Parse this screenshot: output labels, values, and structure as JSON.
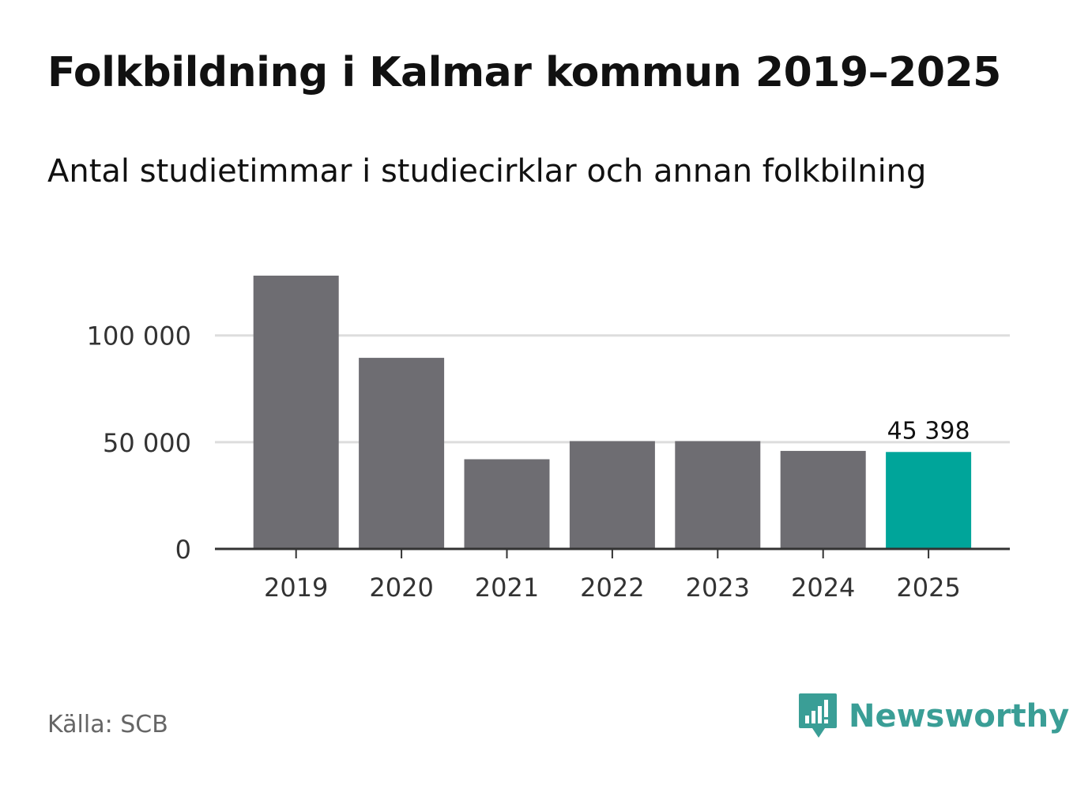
{
  "title": "Folkbildning i Kalmar kommun 2019–2025",
  "subtitle": "Antal studietimmar i studiecirklar och annan folkbilning",
  "source": "Källa: SCB",
  "brand": {
    "name": "Newsworthy",
    "icon": "newsworthy-logo-icon",
    "color": "#3a9e96"
  },
  "colors": {
    "bar": "#6e6d72",
    "highlight": "#00a59a",
    "grid": "#dddddd",
    "axis": "#333333"
  },
  "chart_data": {
    "type": "bar",
    "categories": [
      "2019",
      "2020",
      "2021",
      "2022",
      "2023",
      "2024",
      "2025"
    ],
    "values": [
      128000,
      89500,
      42000,
      50500,
      50500,
      45900,
      45398
    ],
    "highlight_index": 6,
    "data_labels": [
      {
        "index": 6,
        "text": "45 398"
      }
    ],
    "ylim": [
      0,
      128000
    ],
    "yticks": [
      {
        "value": 0,
        "label": "0"
      },
      {
        "value": 50000,
        "label": "50 000"
      },
      {
        "value": 100000,
        "label": "100 000"
      }
    ],
    "grid": true,
    "xlabel": "",
    "ylabel": ""
  }
}
